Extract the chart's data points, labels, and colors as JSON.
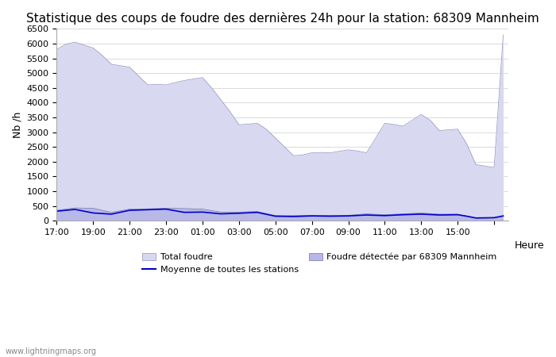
{
  "title": "Statistique des coups de foudre des dernières 24h pour la station: 68309 Mannheim",
  "ylabel": "Nb /h",
  "xlabel_right": "Heure",
  "watermark": "www.lightningmaps.org",
  "ylim": [
    0,
    6500
  ],
  "yticks": [
    0,
    500,
    1000,
    1500,
    2000,
    2500,
    3000,
    3500,
    4000,
    4500,
    5000,
    5500,
    6000,
    6500
  ],
  "xtick_positions": [
    17,
    19,
    21,
    23,
    25,
    27,
    29,
    31,
    33,
    35,
    37,
    39,
    41
  ],
  "xtick_labels": [
    "17:00",
    "19:00",
    "21:00",
    "23:00",
    "01:00",
    "03:00",
    "05:00",
    "07:00",
    "09:00",
    "11:00",
    "13:00",
    "15:00",
    ""
  ],
  "bg_color": "#ffffff",
  "fill_total_color": "#d8d8f0",
  "fill_detected_color": "#b8b8e8",
  "line_color": "#0000cc",
  "outline_total_color": "#9090c0",
  "outline_detected_color": "#7070b0",
  "title_fontsize": 11,
  "x_hours_full": [
    17,
    17.5,
    18,
    18.5,
    19,
    19.5,
    20,
    20.5,
    21,
    21.5,
    22,
    22.5,
    23,
    23.5,
    24,
    24.5,
    25,
    25.5,
    26,
    26.5,
    27,
    27.5,
    28,
    28.5,
    29,
    29.5,
    30,
    30.5,
    31,
    31.5,
    32,
    32.5,
    33,
    33.5,
    34,
    34.5,
    35,
    35.5,
    36,
    36.5,
    37,
    37.5,
    38,
    38.5,
    39,
    39.5,
    40,
    40.5,
    41,
    41.5
  ],
  "total_foudre_full": [
    5800,
    5980,
    6050,
    5950,
    5850,
    5600,
    5300,
    5250,
    5200,
    4900,
    4600,
    4620,
    4600,
    4680,
    4750,
    4800,
    4850,
    4500,
    4100,
    3700,
    3250,
    3270,
    3300,
    3100,
    2800,
    2500,
    2200,
    2230,
    2300,
    2310,
    2300,
    2350,
    2400,
    2360,
    2300,
    2800,
    3300,
    3260,
    3200,
    3400,
    3600,
    3400,
    3050,
    3080,
    3100,
    2600,
    1900,
    1850,
    1800,
    6300
  ],
  "detected_full": [
    350,
    390,
    430,
    425,
    420,
    350,
    280,
    335,
    390,
    395,
    400,
    410,
    420,
    415,
    410,
    400,
    390,
    340,
    290,
    290,
    290,
    300,
    310,
    240,
    170,
    168,
    170,
    172,
    175,
    177,
    180,
    179,
    180,
    205,
    230,
    215,
    200,
    215,
    230,
    245,
    260,
    240,
    220,
    221,
    220,
    150,
    80,
    85,
    90,
    150
  ],
  "avg_full": [
    320,
    350,
    380,
    320,
    260,
    240,
    220,
    285,
    350,
    360,
    370,
    380,
    390,
    335,
    280,
    285,
    290,
    260,
    230,
    240,
    250,
    265,
    280,
    215,
    150,
    145,
    140,
    150,
    160,
    155,
    150,
    155,
    160,
    175,
    190,
    180,
    170,
    185,
    200,
    210,
    220,
    205,
    190,
    195,
    200,
    150,
    90,
    95,
    100,
    160
  ],
  "legend_total": "Total foudre",
  "legend_avg": "Moyenne de toutes les stations",
  "legend_detected": "Foudre détectée par 68309 Mannheim"
}
